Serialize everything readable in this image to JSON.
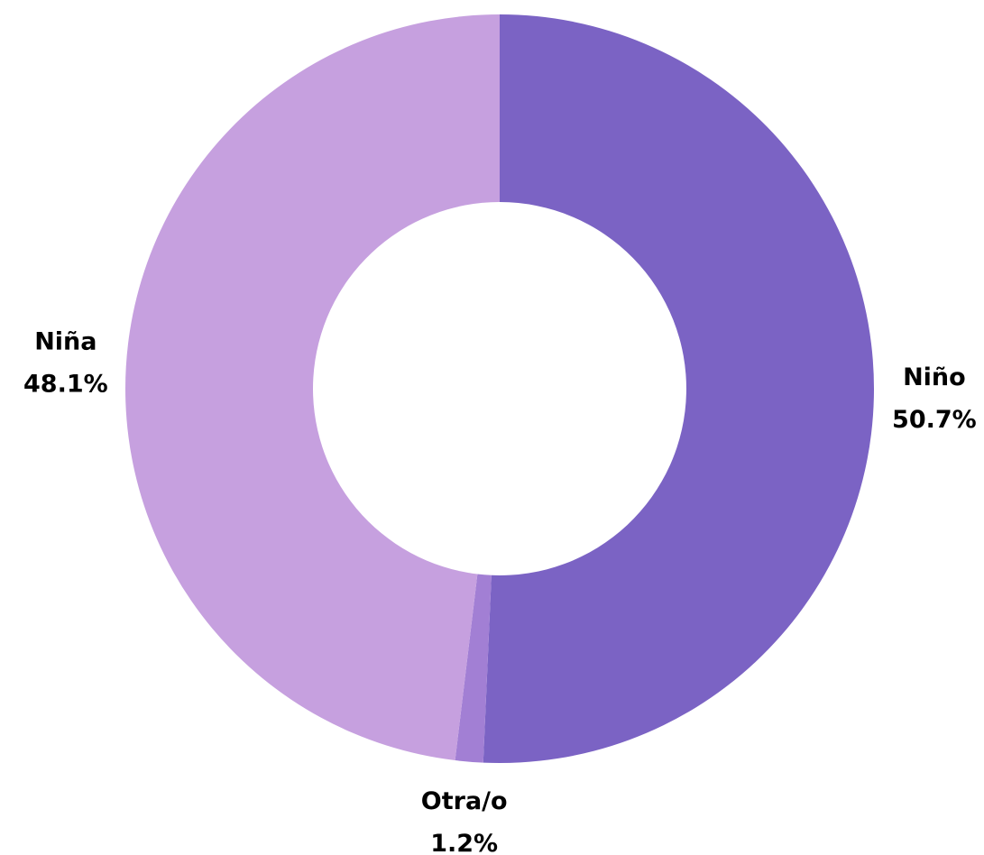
{
  "chart_data": {
    "type": "donut",
    "categories": [
      "Niño",
      "Otra/o",
      "Niña"
    ],
    "values": [
      50.7,
      1.2,
      48.1
    ],
    "value_labels": [
      "50.7%",
      "1.2%",
      "48.1%"
    ],
    "colors": [
      "#7b63c4",
      "#a27fd4",
      "#c6a0df"
    ]
  }
}
